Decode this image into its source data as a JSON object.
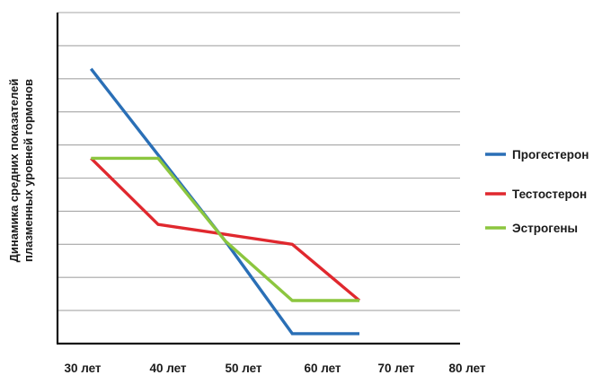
{
  "chart_data": {
    "type": "line",
    "title": "",
    "xlabel": "",
    "ylabel_lines": [
      "Динамика средних показателей",
      "плазменных уровней гормонов"
    ],
    "x_tick_labels": [
      "30 лет",
      "40 лет",
      "50 лет",
      "60 лет",
      "70 лет",
      "80 лет"
    ],
    "x_range": [
      0,
      6
    ],
    "y_range": [
      0,
      10
    ],
    "grid": "horizontal",
    "legend_position": "right",
    "series": [
      {
        "name": "Прогестерон",
        "color": "#2a6fb6",
        "points": [
          [
            0.5,
            8.3
          ],
          [
            1.5,
            5.7
          ],
          [
            2.5,
            3.1
          ],
          [
            3.5,
            0.3
          ],
          [
            4.5,
            0.3
          ]
        ]
      },
      {
        "name": "Тестостерон",
        "color": "#e0282e",
        "points": [
          [
            0.5,
            5.6
          ],
          [
            1.5,
            3.6
          ],
          [
            2.5,
            3.3
          ],
          [
            3.5,
            3.0
          ],
          [
            4.5,
            1.3
          ]
        ]
      },
      {
        "name": "Эстрогены",
        "color": "#8cc63f",
        "points": [
          [
            0.5,
            5.6
          ],
          [
            1.5,
            5.6
          ],
          [
            2.5,
            3.1
          ],
          [
            3.5,
            1.3
          ],
          [
            4.5,
            1.3
          ]
        ]
      }
    ]
  }
}
